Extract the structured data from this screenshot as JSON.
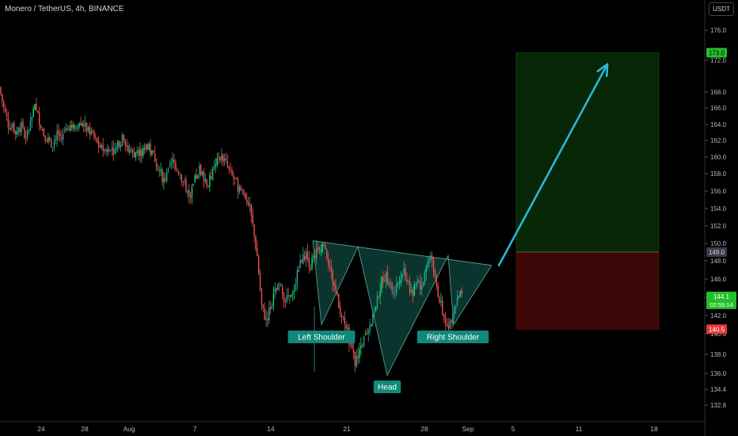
{
  "header": {
    "title": "Monero / TetherUS, 4h, BINANCE",
    "currency": "USDT"
  },
  "colors": {
    "background": "#000000",
    "up_candle": "#26a69a",
    "up_candle_bright": "#00e676",
    "down_candle": "#ef5350",
    "pattern_fill": "#0e3d36",
    "pattern_line": "#4f9e8f",
    "label_bg": "#11897a",
    "target_fill": "#062606",
    "stop_fill": "#3a0606",
    "arrow": "#29b6d8",
    "axis_text": "#b2b5be",
    "current_price_bg": "#22c02b",
    "target_price_bg": "#22c02b",
    "stop_price_bg": "#e53935"
  },
  "chart_data": {
    "type": "candlestick",
    "y_axis": {
      "ticks": [
        "176.0",
        "172.0",
        "168.0",
        "166.0",
        "164.0",
        "162.0",
        "160.0",
        "158.0",
        "156.0",
        "154.0",
        "152.0",
        "150.0",
        "148.0",
        "146.0",
        "144.0",
        "142.0",
        "140.0",
        "138.0",
        "136.0",
        "134.4",
        "132.8"
      ],
      "ylim": [
        131.5,
        178.0
      ]
    },
    "x_axis": {
      "ticks": [
        "24",
        "28",
        "Aug",
        "7",
        "14",
        "21",
        "28",
        "Sep",
        "5",
        "11",
        "18"
      ]
    },
    "price_labels": {
      "target": "173.0",
      "entry": "149.0",
      "current": "144.1",
      "countdown": "02:59:14",
      "stop": "140.5"
    },
    "pattern_labels": {
      "left_shoulder": "Left Shoulder",
      "head": "Head",
      "right_shoulder": "Right Shoulder"
    },
    "pattern_points": {
      "neckline_start": {
        "x": "17",
        "y": 150.3
      },
      "neckline_end": {
        "x": "Sep 3",
        "y": 147.5
      },
      "left_shoulder": {
        "x": "18",
        "y": 141.0
      },
      "head": {
        "x": "24",
        "y": 135.8
      },
      "right_shoulder": {
        "x": "30",
        "y": 141.0
      }
    },
    "position": {
      "entry": 149.0,
      "target": 173.0,
      "stop": 140.5
    },
    "projection_arrow": {
      "from": {
        "x": "Sep 3",
        "y": 147.5
      },
      "to": {
        "x": "Sep 14",
        "y": 171.5
      }
    },
    "price_path": [
      168.6,
      166.0,
      164.0,
      163.5,
      163.2,
      163.8,
      162.0,
      164.2,
      166.0,
      164.5,
      162.8,
      162.0,
      161.5,
      163.0,
      162.2,
      163.6,
      164.0,
      163.4,
      164.6,
      163.8,
      163.5,
      162.6,
      161.6,
      161.0,
      160.7,
      161.4,
      160.6,
      161.8,
      162.4,
      160.8,
      160.2,
      161.0,
      160.4,
      161.7,
      160.6,
      159.8,
      158.4,
      157.2,
      158.2,
      159.4,
      158.8,
      157.6,
      156.4,
      155.4,
      157.2,
      158.6,
      157.6,
      156.8,
      158.2,
      159.6,
      160.2,
      159.2,
      158.0,
      157.2,
      156.2,
      155.6,
      154.8,
      152.0,
      148.5,
      143.0,
      141.5,
      143.0,
      144.5,
      145.2,
      144.0,
      143.6,
      144.2,
      146.8,
      148.2,
      148.6,
      147.5,
      148.8,
      149.6,
      150.0,
      148.0,
      145.8,
      144.2,
      141.8,
      140.6,
      139.0,
      137.2,
      138.4,
      139.5,
      140.6,
      142.2,
      143.6,
      145.8,
      146.4,
      145.0,
      144.8,
      146.2,
      147.0,
      145.5,
      144.2,
      146.0,
      145.0,
      147.4,
      148.6,
      146.0,
      143.8,
      141.8,
      141.0,
      142.2,
      143.6,
      144.4
    ]
  }
}
